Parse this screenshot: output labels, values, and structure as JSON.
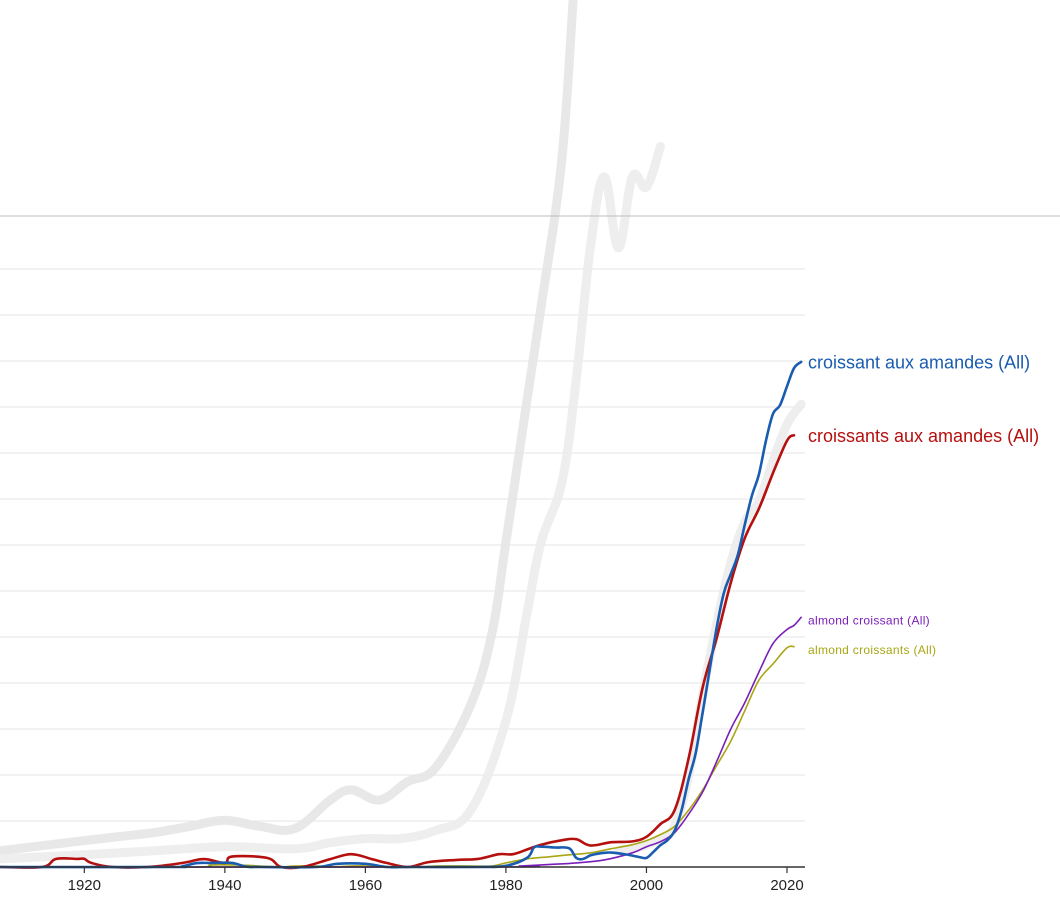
{
  "chart_data": {
    "type": "line",
    "title": "",
    "xlabel": "",
    "ylabel": "",
    "xlim": [
      1908,
      2022
    ],
    "grid": true,
    "x_ticks": [
      1920,
      1940,
      1960,
      1980,
      2000,
      2020
    ],
    "series": [
      {
        "name": "croissant aux amandes (All)",
        "color": "#1a5cb0",
        "x": [
          1908,
          1932,
          1934,
          1936,
          1938,
          1941,
          1943,
          1945,
          1953,
          1956,
          1960,
          1963,
          1966,
          1976,
          1980,
          1983,
          1984,
          1985,
          1987,
          1989,
          1990,
          1991,
          1992,
          1993,
          1994,
          1995,
          1997,
          1999,
          2000,
          2001,
          2002,
          2003,
          2004,
          2005,
          2006,
          2007,
          2008,
          2009,
          2010,
          2011,
          2012,
          2013,
          2014,
          2015,
          2016,
          2017,
          2018,
          2019,
          2020,
          2021,
          2022
        ],
        "y": [
          0,
          0,
          0.4,
          1.9,
          2.0,
          2.0,
          0.2,
          0,
          0,
          1.6,
          1.6,
          0,
          0,
          0,
          0.6,
          4.5,
          9.6,
          10.0,
          9.6,
          9.2,
          4.5,
          4.0,
          5.7,
          6.5,
          7.0,
          7.1,
          6.2,
          4.9,
          4.5,
          7.5,
          10.8,
          13.2,
          17.9,
          28.0,
          43.2,
          56.1,
          76.2,
          97.3,
          118.0,
          134.9,
          144.3,
          153.7,
          168.7,
          182.9,
          193.4,
          209.9,
          223.1,
          227.5,
          236.8,
          245.7,
          248.8
        ]
      },
      {
        "name": "croissants aux amandes (All)",
        "color": "#b5100e",
        "x": [
          1908,
          1914,
          1916,
          1919,
          1920,
          1921,
          1924,
          1929,
          1934,
          1937,
          1940,
          1941,
          1946,
          1948,
          1951,
          1955,
          1958,
          1961,
          1963,
          1966,
          1969,
          1973,
          1976,
          1979,
          1981,
          1983,
          1985,
          1988,
          1990,
          1992,
          1995,
          1998,
          2000,
          2002,
          2004,
          2006,
          2008,
          2010,
          2012,
          2014,
          2016,
          2018,
          2020,
          2021
        ],
        "y": [
          0,
          0,
          4.0,
          4.0,
          4.0,
          2.0,
          0,
          0,
          2.0,
          3.9,
          2.0,
          5.1,
          4.5,
          0,
          0,
          3.9,
          6.3,
          3.8,
          2.0,
          0,
          2.4,
          3.5,
          4.0,
          6.3,
          6.3,
          8.6,
          11.0,
          13.2,
          13.7,
          10.6,
          12.2,
          12.6,
          14.9,
          21.2,
          28.0,
          53.5,
          88.5,
          112.8,
          140.0,
          162.0,
          176.5,
          194.0,
          210.0,
          212.7
        ]
      },
      {
        "name": "almond croissant (All)",
        "color": "#7a1fb8",
        "x": [
          1908,
          1978,
          1982,
          1986,
          1990,
          1994,
          1998,
          2000,
          2002,
          2004,
          2006,
          2008,
          2010,
          2012,
          2014,
          2016,
          2018,
          2020,
          2021,
          2022
        ],
        "y": [
          0,
          0,
          0.5,
          1.2,
          2.0,
          3.5,
          7.0,
          10.0,
          12.5,
          17.0,
          26.0,
          37.0,
          52.0,
          68.0,
          81.0,
          96.0,
          110.0,
          117.0,
          119.0,
          123.0
        ]
      },
      {
        "name": "almond croissants (All)",
        "color": "#a8a614",
        "x": [
          1908,
          1935,
          1938,
          1942,
          1945,
          1948,
          1950,
          1953,
          1955,
          1958,
          1960,
          1965,
          1968,
          1970,
          1975,
          1978,
          1980,
          1983,
          1986,
          1989,
          1992,
          1995,
          1998,
          2000,
          2002,
          2004,
          2006,
          2008,
          2010,
          2012,
          2014,
          2016,
          2018,
          2020,
          2021
        ],
        "y": [
          0,
          0,
          1.0,
          1.0,
          0.5,
          0,
          0.5,
          0.5,
          0,
          0.5,
          0.5,
          0,
          0,
          0.5,
          0.5,
          0.5,
          2.0,
          4.0,
          5.0,
          6.0,
          7.0,
          9.0,
          11.0,
          13.0,
          16.0,
          20.0,
          28.0,
          38.0,
          50.0,
          62.0,
          77.0,
          92.0,
          100.0,
          108.0,
          108.5
        ]
      }
    ],
    "background_series": [
      {
        "color": "#e6e6e6",
        "x": [
          1908,
          1920,
          1925,
          1930,
          1935,
          1940,
          1945,
          1950,
          1955,
          1958,
          1962,
          1966,
          1970,
          1975,
          1978,
          1980,
          1983,
          1985,
          1988,
          1990,
          1992,
          1994,
          1996,
          1998,
          2000,
          2002,
          2004
        ],
        "y": [
          8,
          13,
          15,
          17,
          20,
          23,
          20,
          19,
          33,
          38,
          33,
          42,
          49,
          80,
          115,
          160,
          230,
          276,
          350,
          448,
          515,
          613,
          650,
          695,
          760,
          900,
          960
        ]
      },
      {
        "color": "#ececec",
        "x": [
          1908,
          1920,
          1930,
          1940,
          1950,
          1955,
          1960,
          1965,
          1970,
          1975,
          1980,
          1983,
          1985,
          1988,
          1990,
          1992,
          1994,
          1996,
          1998,
          2000,
          2002
        ],
        "y": [
          4,
          6,
          8,
          10,
          9,
          12,
          14,
          14,
          18,
          28,
          72,
          125,
          160,
          190,
          240,
          305,
          340,
          305,
          340,
          335,
          355
        ]
      },
      {
        "color": "#ececec",
        "x": [
          1996,
          1998,
          2000,
          2002,
          2004,
          2006,
          2008,
          2010,
          2012,
          2014,
          2016,
          2018,
          2020,
          2022
        ],
        "y": [
          8,
          9,
          11,
          14,
          20,
          45,
          85,
          120,
          150,
          170,
          180,
          200,
          218,
          228
        ]
      }
    ]
  }
}
